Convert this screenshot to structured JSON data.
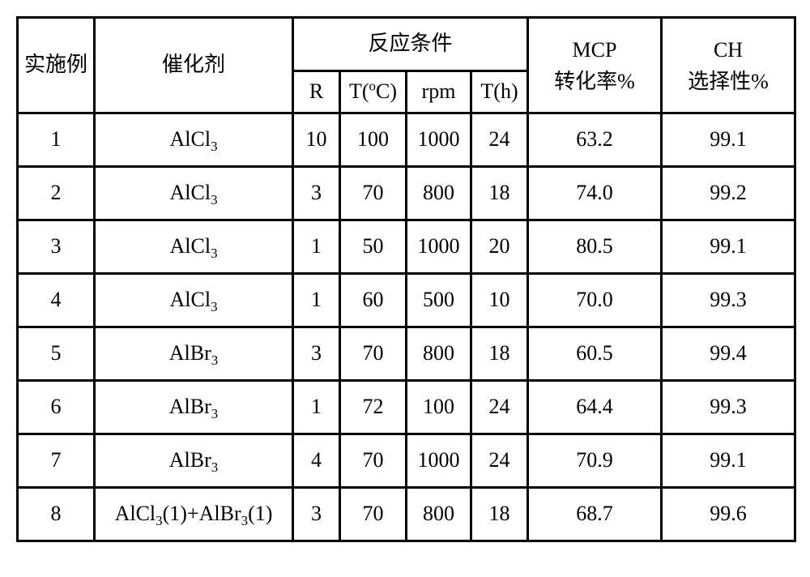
{
  "table": {
    "background_color": "#ffffff",
    "border_color": "#000000",
    "text_color": "#000000",
    "font_size_pt": 20,
    "header": {
      "example": "实施例",
      "catalyst": "催化剂",
      "conditions_group": "反应条件",
      "cond_R": "R",
      "cond_T_C_prefix": "T(",
      "cond_T_C_unit": "o",
      "cond_T_C_suffix": "C)",
      "cond_rpm": "rpm",
      "cond_Th": "T(h)",
      "mcp_line1": "MCP",
      "mcp_line2": "转化率%",
      "ch_line1": "CH",
      "ch_line2": "选择性%"
    },
    "catalyst_labels": {
      "alcl3_pre": "AlCl",
      "alcl3_sub": "3",
      "albr3_pre": "AlBr",
      "albr3_sub": "3",
      "mix_p1": "AlCl",
      "mix_s1": "3",
      "mix_mid": "(1)+AlBr",
      "mix_s2": "3",
      "mix_end": "(1)"
    },
    "rows": [
      {
        "ex": "1",
        "cat": "alcl3",
        "R": "10",
        "TC": "100",
        "rpm": "1000",
        "Th": "24",
        "mcp": "63.2",
        "ch": "99.1"
      },
      {
        "ex": "2",
        "cat": "alcl3",
        "R": "3",
        "TC": "70",
        "rpm": "800",
        "Th": "18",
        "mcp": "74.0",
        "ch": "99.2"
      },
      {
        "ex": "3",
        "cat": "alcl3",
        "R": "1",
        "TC": "50",
        "rpm": "1000",
        "Th": "20",
        "mcp": "80.5",
        "ch": "99.1"
      },
      {
        "ex": "4",
        "cat": "alcl3",
        "R": "1",
        "TC": "60",
        "rpm": "500",
        "Th": "10",
        "mcp": "70.0",
        "ch": "99.3"
      },
      {
        "ex": "5",
        "cat": "albr3",
        "R": "3",
        "TC": "70",
        "rpm": "800",
        "Th": "18",
        "mcp": "60.5",
        "ch": "99.4"
      },
      {
        "ex": "6",
        "cat": "albr3",
        "R": "1",
        "TC": "72",
        "rpm": "100",
        "Th": "24",
        "mcp": "64.4",
        "ch": "99.3"
      },
      {
        "ex": "7",
        "cat": "albr3",
        "R": "4",
        "TC": "70",
        "rpm": "1000",
        "Th": "24",
        "mcp": "70.9",
        "ch": "99.1"
      },
      {
        "ex": "8",
        "cat": "mix",
        "R": "3",
        "TC": "70",
        "rpm": "800",
        "Th": "18",
        "mcp": "68.7",
        "ch": "99.6"
      }
    ]
  }
}
